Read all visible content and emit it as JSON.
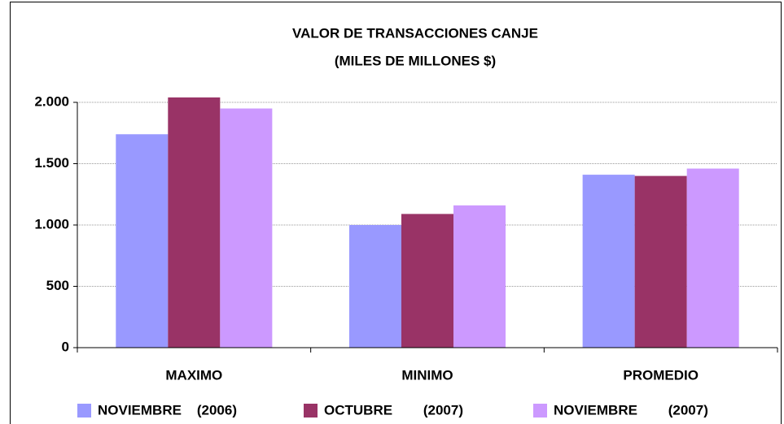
{
  "chart_data": {
    "type": "bar",
    "title": "VALOR DE TRANSACCIONES CANJE",
    "subtitle": "(MILES DE MILLONES $)",
    "categories": [
      "MAXIMO",
      "MINIMO",
      "PROMEDIO"
    ],
    "series": [
      {
        "name": "NOVIEMBRE    (2006)",
        "color": "#9999ff",
        "values": [
          1740,
          1000,
          1410
        ]
      },
      {
        "name": "OCTUBRE        (2007)",
        "color": "#993366",
        "values": [
          2040,
          1090,
          1400
        ]
      },
      {
        "name": "NOVIEMBRE        (2007)",
        "color": "#cc99ff",
        "values": [
          1950,
          1160,
          1460
        ]
      }
    ],
    "ylim": [
      0,
      2000
    ],
    "yticks": [
      0,
      500,
      {
        "value": 1000,
        "label": "1.000"
      },
      {
        "value": 1500,
        "label": "1.500"
      },
      {
        "value": 2000,
        "label": "2.000"
      }
    ],
    "grid": true,
    "legend": "bottom"
  }
}
